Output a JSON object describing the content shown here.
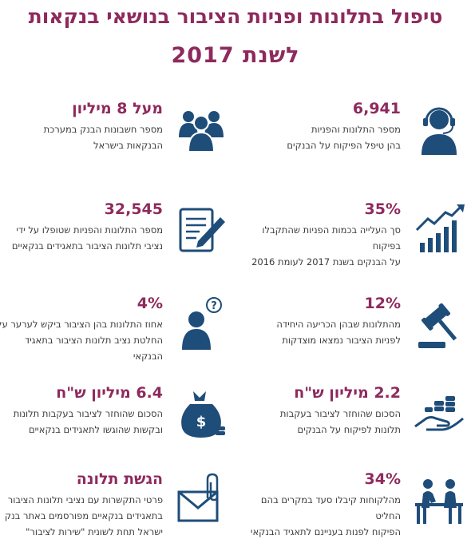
{
  "title": {
    "line1": "טיפול בתלונות ופניות הציבור בנושאי בנקאות",
    "line2": "לשנת 2017"
  },
  "items": [
    {
      "stat": "6,941",
      "desc1": "מספר התלונות והפניות",
      "desc2": "בהן טיפל הפיקוח על הבנקים",
      "icon": "call-center-agent-icon"
    },
    {
      "stat": "מעל 8  מיליון",
      "desc1": "מספר חשבונות הבנק במערכת",
      "desc2": "הבנקאות בישראל",
      "icon": "group-of-people-icon"
    },
    {
      "stat": "35%",
      "desc1": "סך העלייה בכמות הפניות שהתקבלו בפיקוח",
      "desc2": "על הבנקים בשנת 2017  לעומת  2016",
      "icon": "rising-bar-chart-icon"
    },
    {
      "stat": "32,545",
      "desc1": "מספר התלונות והפניות שטופלו על ידי",
      "desc2": "נציבי תלונות הציבור בתאגידים בנקאיים",
      "icon": "notepad-pencil-icon"
    },
    {
      "stat": "12%",
      "desc1": "מהתלונות שבהן הכריעה היחידה",
      "desc2": "לפניות הציבור נמצאו מוצדקות",
      "icon": "gavel-icon"
    },
    {
      "stat": "4%",
      "desc1": "אחוז התלונות בהן הציבור ביקש לערער על",
      "desc2": "החלטת נציב תלונות הציבור בתאגיד הבנקאי",
      "icon": "person-question-icon"
    },
    {
      "stat": "2.2  מיליון ש\"ח",
      "desc1": "הסכום שהוחזר לציבור בעקבות",
      "desc2": "תלונות לפיקוח על הבנקים",
      "icon": "hand-coins-icon"
    },
    {
      "stat": "6.4  מיליון ש\"ח",
      "desc1": "הסכום שהוחזר לציבור בעקבות תלונות",
      "desc2": "ובקשות שהוגשו לתאגידים בנקאיים",
      "icon": "money-bag-icon"
    },
    {
      "stat": "34%",
      "desc1": "מהלקוחות קיבלו סעד במקרים בהם החליט",
      "desc2": "הפיקוח לפנות בעניינם לתאגיד הבנקאי",
      "icon": "counter-service-icon"
    },
    {
      "stat": "הגשת תלונה",
      "desc1": "פרטי התקשרות עם נציבי תלונות הציבור",
      "desc2": "בתאגידים בנקאיים מפורסמים באתר בנק",
      "desc3": "ישראל תחת לשונית \"שירות לציבור\"",
      "icon": "envelope-paperclip-icon"
    }
  ],
  "colors": {
    "accent": "#8e2a5d",
    "icon": "#1f4d7a",
    "text": "#3a3a3a"
  }
}
